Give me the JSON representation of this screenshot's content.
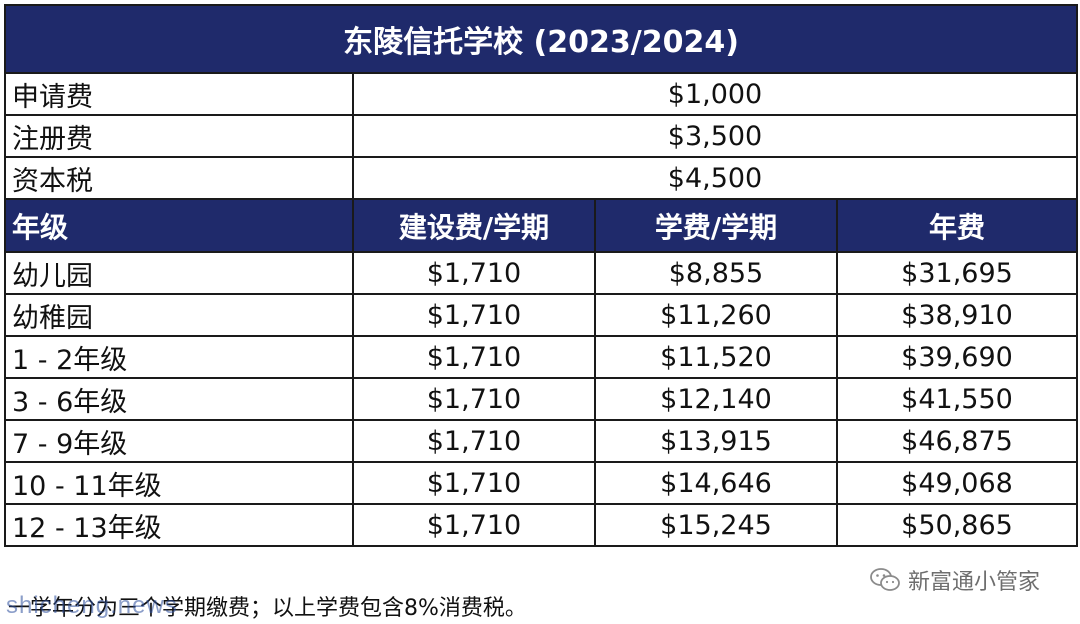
{
  "title": "东陵信托学校 (2023/2024)",
  "fees": [
    {
      "label": "申请费",
      "value": "$1,000"
    },
    {
      "label": "注册费",
      "value": "$3,500"
    },
    {
      "label": "资本税",
      "value": "$4,500"
    }
  ],
  "headers": [
    "年级",
    "建设费/学期",
    "学费/学期",
    "年费"
  ],
  "rows": [
    {
      "grade": "幼儿园",
      "build": "$1,710",
      "tuition": "$8,855",
      "annual": "$31,695"
    },
    {
      "grade": "幼稚园",
      "build": "$1,710",
      "tuition": "$11,260",
      "annual": "$38,910"
    },
    {
      "grade": "1 - 2年级",
      "build": "$1,710",
      "tuition": "$11,520",
      "annual": "$39,690"
    },
    {
      "grade": "3 - 6年级",
      "build": "$1,710",
      "tuition": "$12,140",
      "annual": "$41,550"
    },
    {
      "grade": "7 - 9年级",
      "build": "$1,710",
      "tuition": "$13,915",
      "annual": "$46,875"
    },
    {
      "grade": "10 - 11年级",
      "build": "$1,710",
      "tuition": "$14,646",
      "annual": "$49,068"
    },
    {
      "grade": "12 - 13年级",
      "build": "$1,710",
      "tuition": "$15,245",
      "annual": "$50,865"
    }
  ],
  "footnote": "一学年分为三个学期缴费；以上学费包含8%消费税。",
  "watermark_source": "shicheng.news",
  "watermark_wechat": "新富通小管家",
  "colors": {
    "header_bg": "#1f2a6b",
    "header_text": "#ffffff",
    "border": "#1a1a1a"
  }
}
